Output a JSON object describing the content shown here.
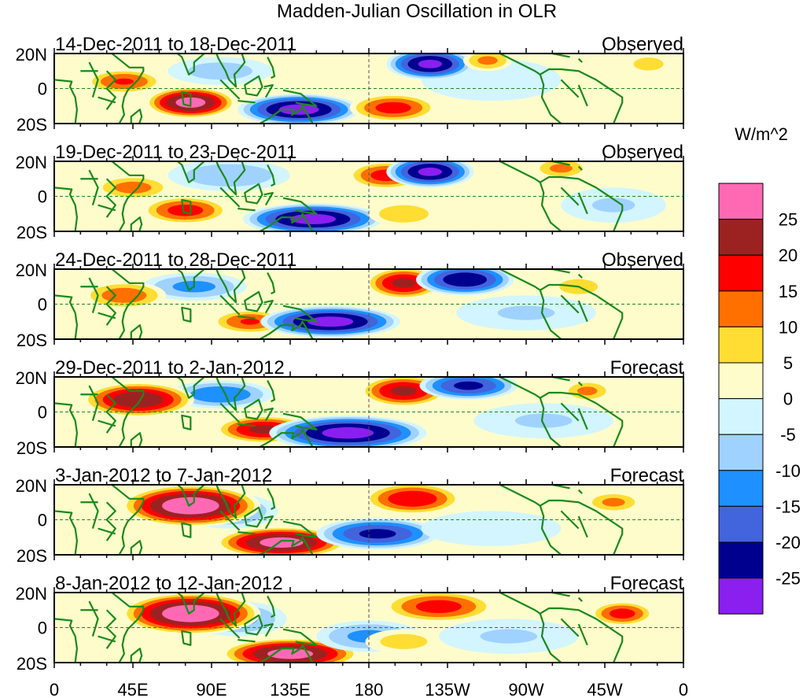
{
  "chart_data": {
    "type": "heatmap",
    "title": "Madden-Julian Oscillation in OLR",
    "units": "W/m^2",
    "x_ticks": [
      "0",
      "45E",
      "90E",
      "135E",
      "180",
      "135W",
      "90W",
      "45W",
      "0"
    ],
    "y_ticks": [
      "20N",
      "0",
      "20S"
    ],
    "xlim": [
      0,
      360
    ],
    "ylim": [
      -20,
      20
    ],
    "colorbar": {
      "labels": [
        "25",
        "20",
        "15",
        "10",
        "5",
        "0",
        "-5",
        "-10",
        "-15",
        "-20",
        "-25"
      ],
      "levels": [
        -25,
        -20,
        -15,
        -10,
        -5,
        0,
        5,
        10,
        15,
        20,
        25
      ],
      "colors": [
        "#8a1ff0",
        "#00008f",
        "#4264dd",
        "#1e90ff",
        "#a0d2ff",
        "#d2f5ff",
        "#fffccc",
        "#ffdd33",
        "#ff7000",
        "#ff0000",
        "#9c2222",
        "#ff69b4"
      ]
    },
    "panels": [
      {
        "period": "14-Dec-2011 to 18-Dec-2011",
        "type": "Observed",
        "features": [
          [
            95,
            10,
            -8,
            30,
            8
          ],
          [
            250,
            5,
            -4,
            40,
            12
          ],
          [
            40,
            4,
            16,
            22,
            7
          ],
          [
            78,
            -8,
            28,
            26,
            9
          ],
          [
            140,
            -12,
            -28,
            35,
            9
          ],
          [
            194,
            -11,
            18,
            25,
            8
          ],
          [
            215,
            14,
            -27,
            25,
            9
          ],
          [
            248,
            16,
            12,
            14,
            6
          ],
          [
            340,
            14,
            8,
            14,
            6
          ]
        ]
      },
      {
        "period": "19-Dec-2011 to 23-Dec-2011",
        "type": "Observed",
        "features": [
          [
            100,
            12,
            -10,
            35,
            9
          ],
          [
            45,
            5,
            13,
            22,
            7
          ],
          [
            75,
            -8,
            18,
            25,
            8
          ],
          [
            148,
            -13,
            -28,
            40,
            9
          ],
          [
            190,
            12,
            18,
            22,
            8
          ],
          [
            215,
            14,
            -27,
            25,
            9
          ],
          [
            200,
            -10,
            10,
            20,
            7
          ],
          [
            290,
            16,
            12,
            16,
            6
          ],
          [
            320,
            -5,
            -6,
            30,
            10
          ]
        ]
      },
      {
        "period": "24-Dec-2011 to 28-Dec-2011",
        "type": "Observed",
        "features": [
          [
            80,
            10,
            -12,
            30,
            8
          ],
          [
            40,
            5,
            14,
            24,
            8
          ],
          [
            112,
            -10,
            16,
            22,
            7
          ],
          [
            158,
            -10,
            -28,
            40,
            9
          ],
          [
            200,
            12,
            22,
            22,
            9
          ],
          [
            235,
            14,
            -25,
            28,
            9
          ],
          [
            300,
            10,
            8,
            18,
            7
          ],
          [
            270,
            -5,
            -6,
            40,
            10
          ]
        ]
      },
      {
        "period": "29-Dec-2011 to 2-Jan-2012",
        "type": "Forecast",
        "features": [
          [
            95,
            10,
            -15,
            30,
            8
          ],
          [
            48,
            7,
            25,
            32,
            10
          ],
          [
            120,
            -10,
            22,
            28,
            8
          ],
          [
            168,
            -12,
            -28,
            45,
            10
          ],
          [
            200,
            12,
            22,
            25,
            9
          ],
          [
            237,
            15,
            -22,
            28,
            8
          ],
          [
            305,
            12,
            12,
            14,
            6
          ],
          [
            280,
            -5,
            -6,
            40,
            10
          ]
        ]
      },
      {
        "period": "3-Jan-2012 to 7-Jan-2012",
        "type": "Forecast",
        "features": [
          [
            100,
            5,
            -12,
            28,
            10
          ],
          [
            78,
            8,
            30,
            40,
            12
          ],
          [
            130,
            -13,
            28,
            38,
            9
          ],
          [
            185,
            -8,
            -22,
            35,
            9
          ],
          [
            205,
            12,
            20,
            28,
            9
          ],
          [
            320,
            10,
            12,
            16,
            6
          ],
          [
            250,
            -5,
            -5,
            40,
            10
          ]
        ]
      },
      {
        "period": "8-Jan-2012 to 12-Jan-2012",
        "type": "Forecast",
        "features": [
          [
            105,
            5,
            -12,
            28,
            10
          ],
          [
            78,
            8,
            30,
            40,
            12
          ],
          [
            135,
            -15,
            28,
            40,
            9
          ],
          [
            180,
            -5,
            -12,
            30,
            9
          ],
          [
            220,
            12,
            18,
            32,
            9
          ],
          [
            200,
            -8,
            8,
            22,
            7
          ],
          [
            325,
            8,
            18,
            18,
            7
          ],
          [
            260,
            -5,
            -6,
            40,
            10
          ]
        ]
      }
    ]
  }
}
